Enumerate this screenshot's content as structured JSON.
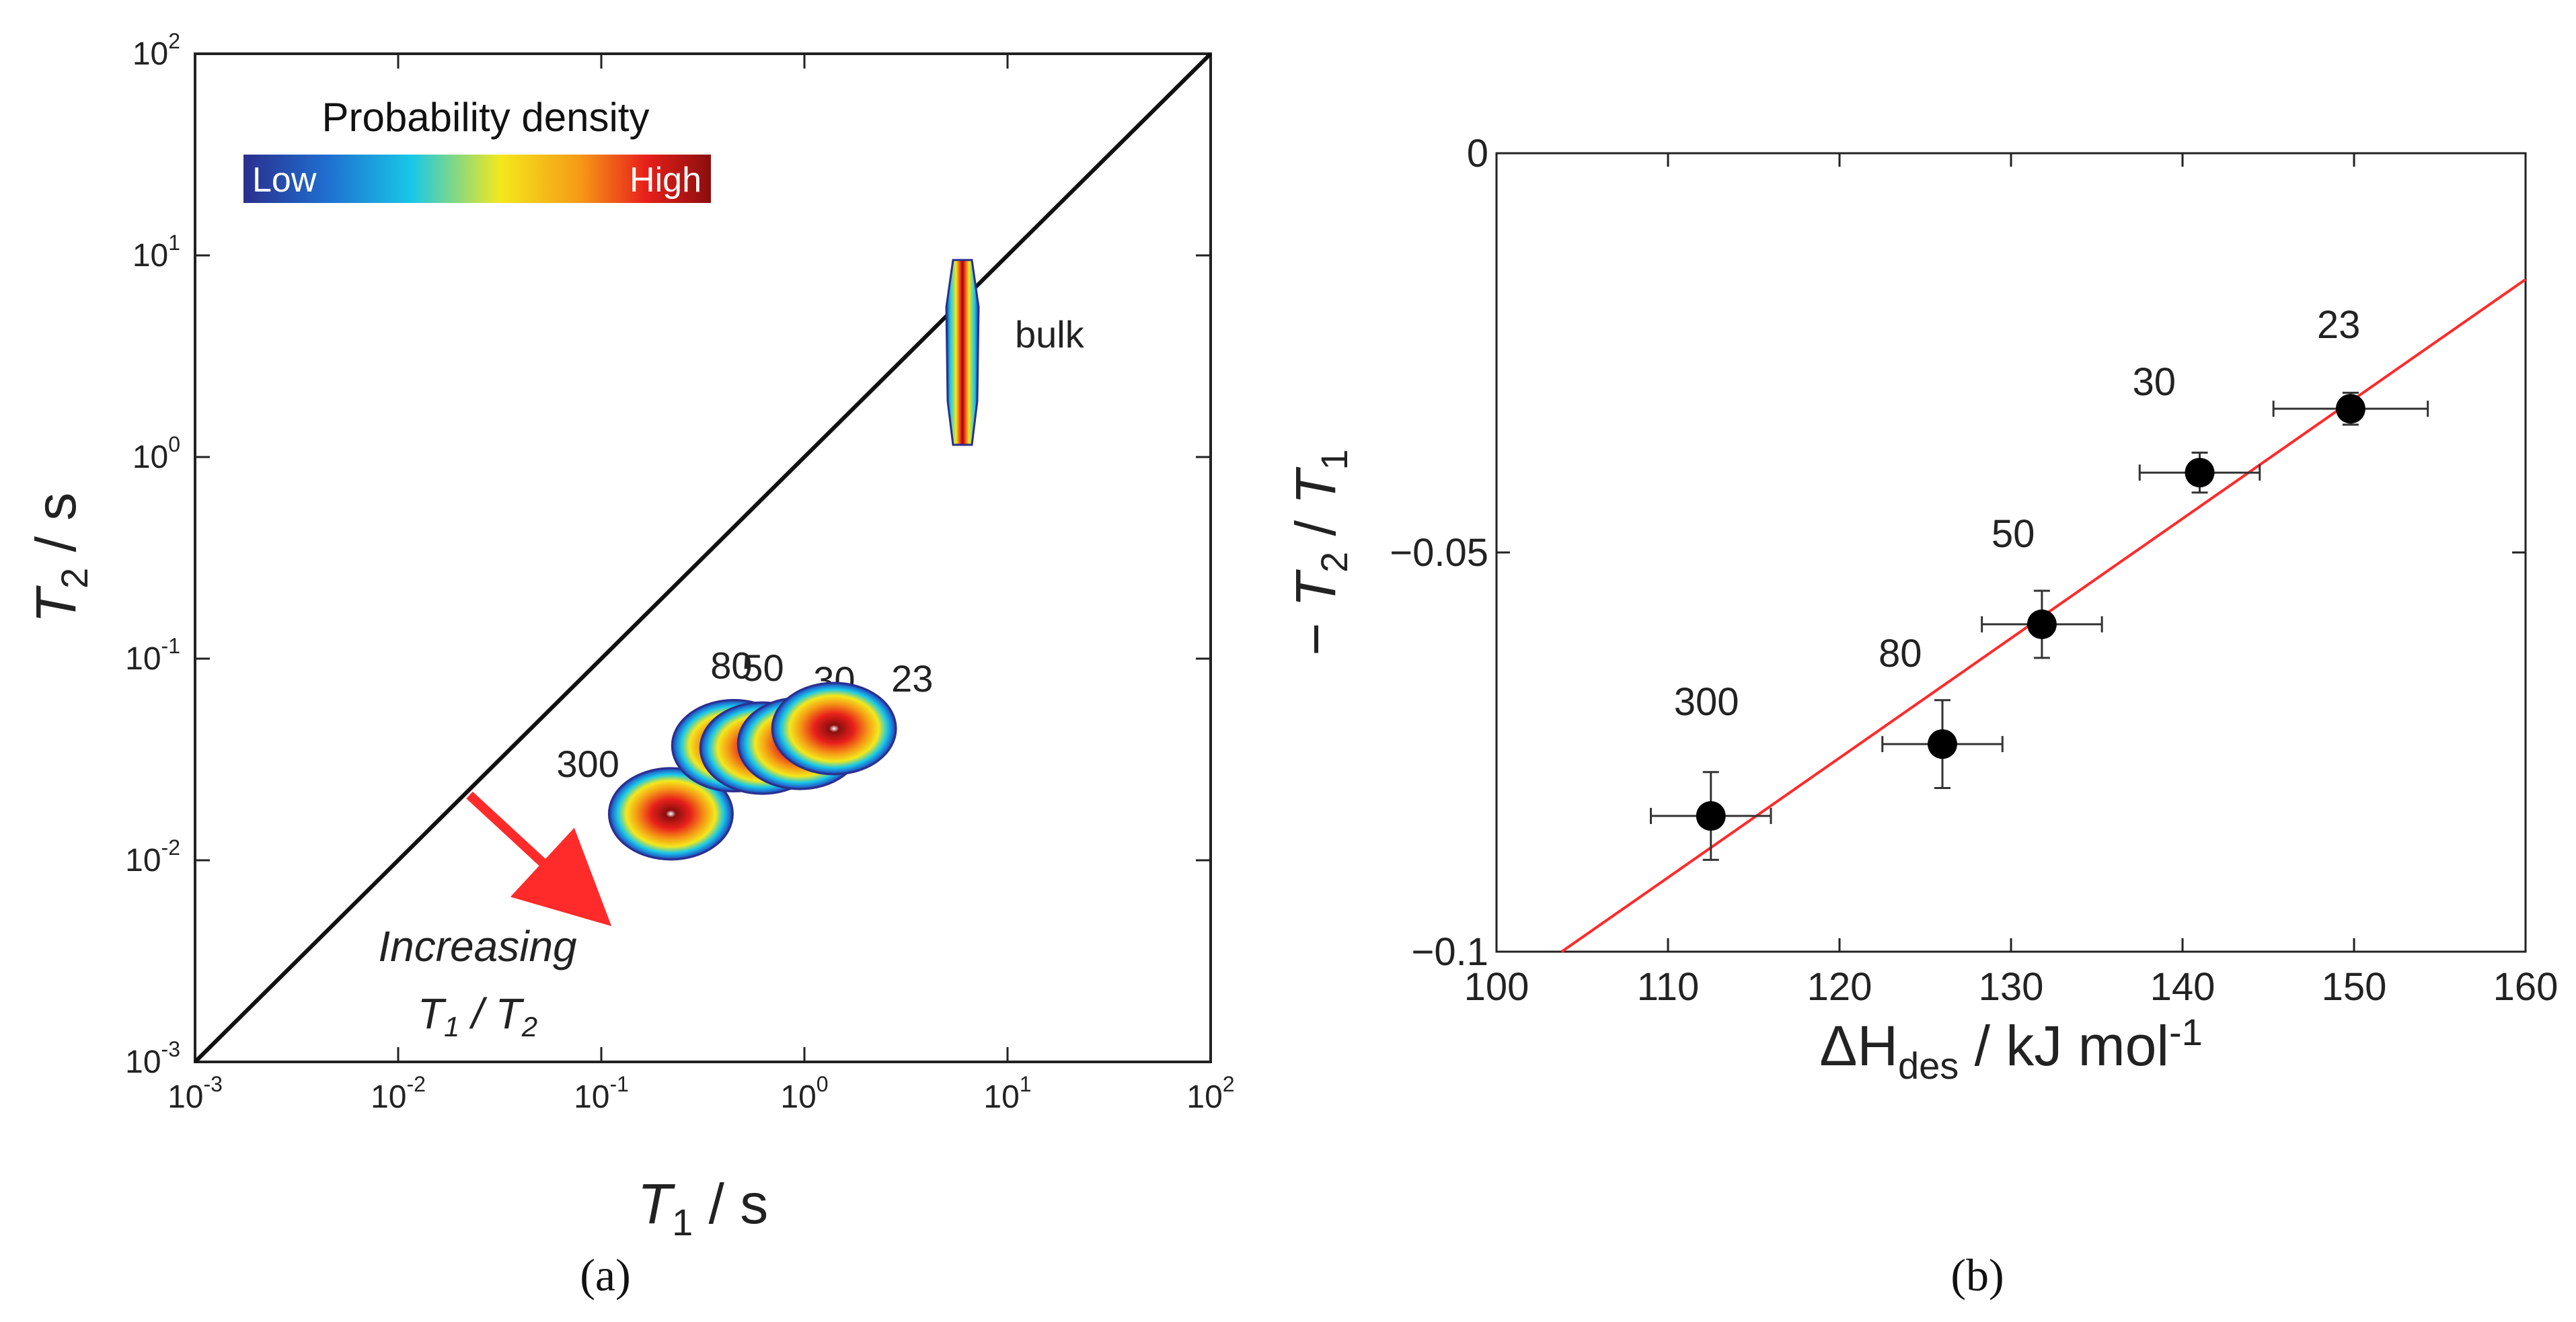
{
  "chart_data": [
    {
      "panel": "a",
      "type": "heatmap",
      "scale": "log-log",
      "caption": "(a)",
      "xlabel": "T₁ / s",
      "ylabel": "T₂ / s",
      "xlim": [
        0.001,
        100
      ],
      "ylim": [
        0.001,
        100
      ],
      "x_ticks": [
        {
          "base": "10",
          "exp": "-3",
          "value": 0.001
        },
        {
          "base": "10",
          "exp": "-2",
          "value": 0.01
        },
        {
          "base": "10",
          "exp": "-1",
          "value": 0.1
        },
        {
          "base": "10",
          "exp": "0",
          "value": 1
        },
        {
          "base": "10",
          "exp": "1",
          "value": 10
        },
        {
          "base": "10",
          "exp": "2",
          "value": 100
        }
      ],
      "y_ticks": [
        {
          "base": "10",
          "exp": "-3",
          "value": 0.001
        },
        {
          "base": "10",
          "exp": "-2",
          "value": 0.01
        },
        {
          "base": "10",
          "exp": "-1",
          "value": 0.1
        },
        {
          "base": "10",
          "exp": "0",
          "value": 1
        },
        {
          "base": "10",
          "exp": "1",
          "value": 10
        },
        {
          "base": "10",
          "exp": "2",
          "value": 100
        }
      ],
      "diagonal": "T1 = T2",
      "colorbar": {
        "title": "Probability density",
        "low": "Low",
        "high": "High",
        "colors": [
          "#2b2f8f",
          "#1f6fd0",
          "#18c8e8",
          "#f4e81c",
          "#f59a16",
          "#e8201a",
          "#8b0e0e"
        ]
      },
      "peaks": [
        {
          "label": "300",
          "t1": 0.22,
          "t2": 0.017
        },
        {
          "label": "80",
          "t1": 0.45,
          "t2": 0.037
        },
        {
          "label": "50",
          "t1": 0.62,
          "t2": 0.036
        },
        {
          "label": "30",
          "t1": 0.95,
          "t2": 0.038
        },
        {
          "label": "23",
          "t1": 1.4,
          "t2": 0.045
        },
        {
          "label": "bulk",
          "t1": 6.0,
          "t2": 3.0
        }
      ],
      "annotation": {
        "line1": "Increasing",
        "line2a": "T",
        "line2a_sub": "1",
        "line2b": " / T",
        "line2b_sub": "2"
      }
    },
    {
      "panel": "b",
      "type": "scatter",
      "caption": "(b)",
      "xlabel": "ΔH",
      "xlabel_sub": "des",
      "xlabel_rest": " / kJ mol",
      "xlabel_sup": "-1",
      "ylabel": "− T₂ / T₁",
      "xlim": [
        100,
        160
      ],
      "ylim": [
        -0.1,
        0
      ],
      "x_ticks": [
        "100",
        "110",
        "120",
        "130",
        "140",
        "150",
        "160"
      ],
      "y_ticks": [
        "0",
        "−0.05",
        "−0.1"
      ],
      "points": [
        {
          "label": "300",
          "x": 112.5,
          "y": -0.083,
          "xerr": 3.5,
          "yerr": 0.0055
        },
        {
          "label": "80",
          "x": 126.0,
          "y": -0.074,
          "xerr": 3.5,
          "yerr": 0.0055
        },
        {
          "label": "50",
          "x": 131.8,
          "y": -0.059,
          "xerr": 3.5,
          "yerr": 0.0042
        },
        {
          "label": "30",
          "x": 141.0,
          "y": -0.04,
          "xerr": 3.5,
          "yerr": 0.0025
        },
        {
          "label": "23",
          "x": 149.8,
          "y": -0.032,
          "xerr": 4.5,
          "yerr": 0.002
        }
      ],
      "fit_line": {
        "x": [
          103.8,
          160
        ],
        "y": [
          -0.1,
          -0.0158
        ],
        "color": "#ff2a2a"
      }
    }
  ]
}
